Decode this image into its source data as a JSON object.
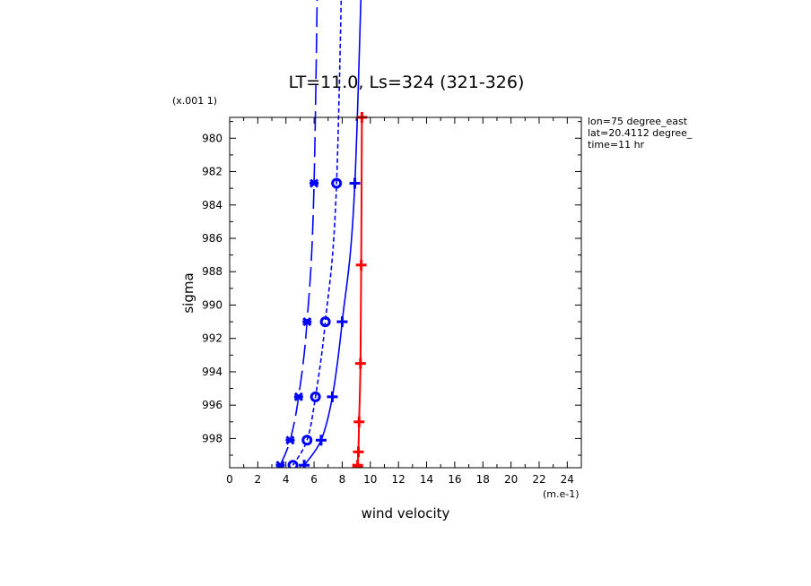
{
  "chart_data": {
    "type": "line",
    "title": "LT=11.0, Ls=324 (321-326)",
    "xlabel": "wind velocity",
    "x_unit": "(m.e-1)",
    "ylabel": "sigma",
    "y_unit": "(x.001 1)",
    "xlim": [
      0,
      25
    ],
    "ylim": [
      999.75,
      978.75
    ],
    "x_ticks": [
      "0",
      "2",
      "4",
      "6",
      "8",
      "10",
      "12",
      "14",
      "16",
      "18",
      "20",
      "22",
      "24"
    ],
    "y_ticks": [
      "980",
      "982",
      "984",
      "986",
      "988",
      "990",
      "992",
      "994",
      "996",
      "998"
    ],
    "annotations": [
      "lon=75 degree_east",
      "lat=20.4112 degree_",
      "time=11 hr"
    ],
    "series": [
      {
        "color": "#0000ff",
        "dash": "long-dash",
        "marker": "star",
        "points": [
          [
            3.6,
            999.6
          ],
          [
            4.3,
            998.1
          ],
          [
            4.9,
            995.5
          ],
          [
            5.5,
            991.0
          ],
          [
            6.0,
            982.7
          ],
          [
            6.4,
            960
          ]
        ],
        "markers": [
          [
            3.6,
            999.6
          ],
          [
            4.3,
            998.1
          ],
          [
            4.9,
            995.5
          ],
          [
            5.5,
            991.0
          ],
          [
            6.0,
            982.7
          ]
        ]
      },
      {
        "color": "#0000ff",
        "dash": "short-dash",
        "marker": "circle",
        "points": [
          [
            4.5,
            999.6
          ],
          [
            5.5,
            998.1
          ],
          [
            6.1,
            995.5
          ],
          [
            6.8,
            991.0
          ],
          [
            7.6,
            982.7
          ],
          [
            8.2,
            960
          ]
        ],
        "markers": [
          [
            4.5,
            999.6
          ],
          [
            5.5,
            998.1
          ],
          [
            6.1,
            995.5
          ],
          [
            6.8,
            991.0
          ],
          [
            7.6,
            982.7
          ]
        ]
      },
      {
        "color": "#0000ff",
        "dash": "solid",
        "marker": "plus",
        "points": [
          [
            5.3,
            999.6
          ],
          [
            6.5,
            998.1
          ],
          [
            7.3,
            995.5
          ],
          [
            8.0,
            991.0
          ],
          [
            8.9,
            982.7
          ],
          [
            9.7,
            960
          ]
        ],
        "markers": [
          [
            5.3,
            999.6
          ],
          [
            6.5,
            998.1
          ],
          [
            7.3,
            995.5
          ],
          [
            8.0,
            991.0
          ],
          [
            8.9,
            982.7
          ]
        ]
      },
      {
        "color": "#ff0000",
        "dash": "solid",
        "marker": "plus",
        "points": [
          [
            9.1,
            999.75
          ],
          [
            9.1,
            999.6
          ],
          [
            9.15,
            998.8
          ],
          [
            9.2,
            997.0
          ],
          [
            9.3,
            993.5
          ],
          [
            9.35,
            987.6
          ],
          [
            9.4,
            978.75
          ]
        ],
        "markers": [
          [
            9.1,
            999.75
          ],
          [
            9.1,
            999.6
          ],
          [
            9.15,
            998.8
          ],
          [
            9.2,
            997.0
          ],
          [
            9.3,
            993.5
          ],
          [
            9.35,
            987.6
          ],
          [
            9.4,
            978.75
          ]
        ]
      }
    ]
  }
}
